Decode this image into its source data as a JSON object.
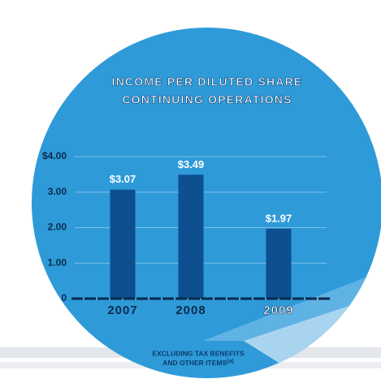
{
  "chart_data": {
    "type": "bar",
    "title": [
      "INCOME PER DILUTED SHARE",
      "CONTINUING OPERATIONS"
    ],
    "categories": [
      "2007",
      "2008",
      "2009"
    ],
    "values": [
      3.07,
      3.49,
      1.97
    ],
    "value_labels": [
      "$3.07",
      "$3.49",
      "$1.97"
    ],
    "color": "#0d4f8f",
    "ylim": [
      0,
      4
    ],
    "yticks": [
      0,
      {
        "value": 1,
        "label": "1.00"
      },
      {
        "value": 2,
        "label": "2.00"
      },
      {
        "value": 3,
        "label": "3.00"
      },
      {
        "value": 4,
        "label": "$4.00"
      }
    ],
    "grid": true,
    "footnote": [
      "EXCLUDING TAX BENEFITS",
      "AND OTHER ITEMS"
    ],
    "footnote_mark": "(a)"
  }
}
